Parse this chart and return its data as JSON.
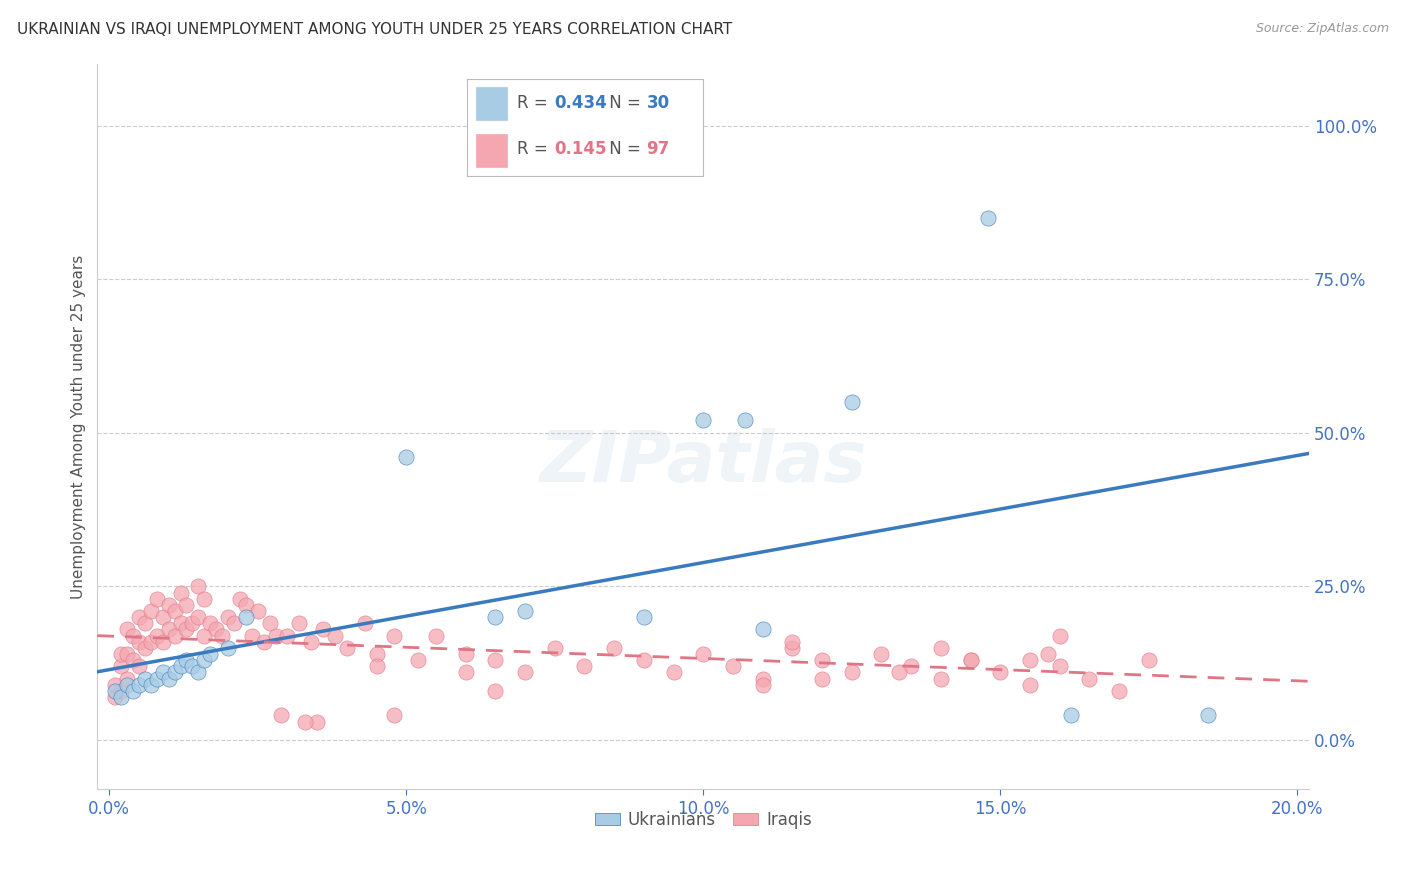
{
  "title": "UKRAINIAN VS IRAQI UNEMPLOYMENT AMONG YOUTH UNDER 25 YEARS CORRELATION CHART",
  "source": "Source: ZipAtlas.com",
  "ylabel": "Unemployment Among Youth under 25 years",
  "xlim": [
    -0.002,
    0.202
  ],
  "ylim": [
    -0.08,
    1.1
  ],
  "yticks": [
    0.0,
    0.25,
    0.5,
    0.75,
    1.0
  ],
  "xticks": [
    0.0,
    0.05,
    0.1,
    0.15,
    0.2
  ],
  "ukrainian_R": 0.434,
  "ukrainian_N": 30,
  "iraqi_R": 0.145,
  "iraqi_N": 97,
  "ukrainian_color": "#a8cce4",
  "iraqi_color": "#f4a7b0",
  "ukrainian_line_color": "#3a7abf",
  "iraqi_line_color": "#e07585",
  "background_color": "#ffffff",
  "grid_color": "#cccccc",
  "axis_label_color": "#4472c4",
  "watermark": "ZIPatlas",
  "ukrainian_x": [
    0.001,
    0.002,
    0.003,
    0.004,
    0.005,
    0.006,
    0.007,
    0.008,
    0.009,
    0.01,
    0.011,
    0.012,
    0.013,
    0.014,
    0.015,
    0.016,
    0.017,
    0.02,
    0.023,
    0.05,
    0.065,
    0.07,
    0.09,
    0.1,
    0.107,
    0.11,
    0.125,
    0.148,
    0.162,
    0.185
  ],
  "ukrainian_y": [
    0.08,
    0.07,
    0.09,
    0.08,
    0.09,
    0.1,
    0.09,
    0.1,
    0.11,
    0.1,
    0.11,
    0.12,
    0.13,
    0.12,
    0.11,
    0.13,
    0.14,
    0.15,
    0.2,
    0.46,
    0.2,
    0.21,
    0.2,
    0.52,
    0.52,
    0.18,
    0.55,
    0.85,
    0.04,
    0.04
  ],
  "iraqi_x": [
    0.001,
    0.001,
    0.002,
    0.002,
    0.002,
    0.003,
    0.003,
    0.003,
    0.004,
    0.004,
    0.005,
    0.005,
    0.005,
    0.006,
    0.006,
    0.007,
    0.007,
    0.008,
    0.008,
    0.009,
    0.009,
    0.01,
    0.01,
    0.011,
    0.011,
    0.012,
    0.012,
    0.013,
    0.013,
    0.014,
    0.015,
    0.015,
    0.016,
    0.016,
    0.017,
    0.018,
    0.019,
    0.02,
    0.021,
    0.022,
    0.023,
    0.024,
    0.025,
    0.026,
    0.027,
    0.028,
    0.03,
    0.032,
    0.034,
    0.036,
    0.038,
    0.04,
    0.043,
    0.045,
    0.048,
    0.052,
    0.055,
    0.06,
    0.065,
    0.07,
    0.075,
    0.08,
    0.085,
    0.09,
    0.095,
    0.1,
    0.105,
    0.11,
    0.115,
    0.12,
    0.125,
    0.13,
    0.135,
    0.14,
    0.145,
    0.15,
    0.155,
    0.16,
    0.165,
    0.17,
    0.175,
    0.155,
    0.158,
    0.16,
    0.133,
    0.14,
    0.145,
    0.11,
    0.115,
    0.12,
    0.06,
    0.065,
    0.045,
    0.048,
    0.035,
    0.029,
    0.033
  ],
  "iraqi_y": [
    0.07,
    0.09,
    0.08,
    0.12,
    0.14,
    0.1,
    0.14,
    0.18,
    0.13,
    0.17,
    0.12,
    0.16,
    0.2,
    0.15,
    0.19,
    0.16,
    0.21,
    0.17,
    0.23,
    0.16,
    0.2,
    0.18,
    0.22,
    0.17,
    0.21,
    0.19,
    0.24,
    0.18,
    0.22,
    0.19,
    0.2,
    0.25,
    0.17,
    0.23,
    0.19,
    0.18,
    0.17,
    0.2,
    0.19,
    0.23,
    0.22,
    0.17,
    0.21,
    0.16,
    0.19,
    0.17,
    0.17,
    0.19,
    0.16,
    0.18,
    0.17,
    0.15,
    0.19,
    0.14,
    0.17,
    0.13,
    0.17,
    0.14,
    0.13,
    0.11,
    0.15,
    0.12,
    0.15,
    0.13,
    0.11,
    0.14,
    0.12,
    0.1,
    0.15,
    0.13,
    0.11,
    0.14,
    0.12,
    0.1,
    0.13,
    0.11,
    0.09,
    0.12,
    0.1,
    0.08,
    0.13,
    0.13,
    0.14,
    0.17,
    0.11,
    0.15,
    0.13,
    0.09,
    0.16,
    0.1,
    0.11,
    0.08,
    0.12,
    0.04,
    0.03,
    0.04,
    0.03
  ],
  "legend_items": [
    {
      "label": "Ukrainians",
      "color": "#a8cce4"
    },
    {
      "label": "Iraqis",
      "color": "#f4a7b0"
    }
  ]
}
